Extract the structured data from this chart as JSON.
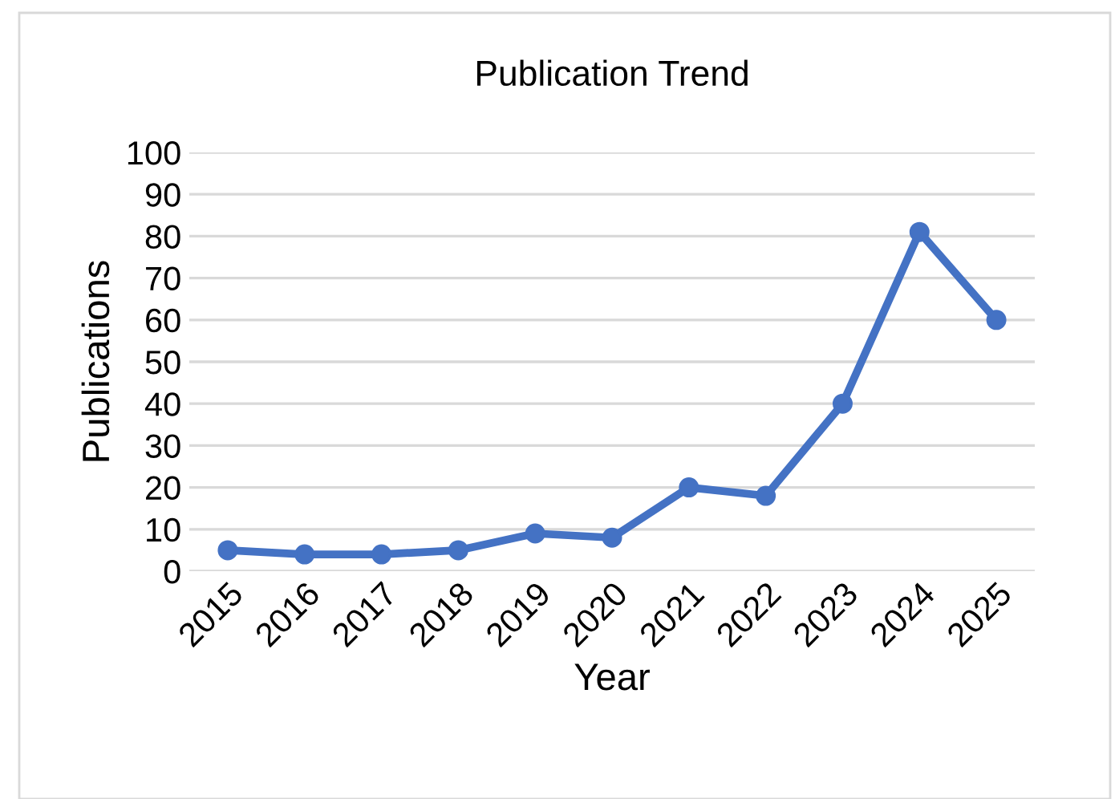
{
  "chart_data": {
    "type": "line",
    "title": "Publication Trend",
    "xlabel": "Year",
    "ylabel": "Publications",
    "categories": [
      "2015",
      "2016",
      "2017",
      "2018",
      "2019",
      "2020",
      "2021",
      "2022",
      "2023",
      "2024",
      "2025"
    ],
    "series": [
      {
        "color": "#4472c4",
        "values": [
          5,
          4,
          4,
          5,
          9,
          8,
          20,
          18,
          40,
          81,
          60
        ]
      }
    ],
    "ylim": [
      0,
      100
    ],
    "yticks": [
      0,
      10,
      20,
      30,
      40,
      50,
      60,
      70,
      80,
      90,
      100
    ],
    "grid": "y",
    "marker": "circle",
    "line_style": "solid",
    "legend": false
  }
}
